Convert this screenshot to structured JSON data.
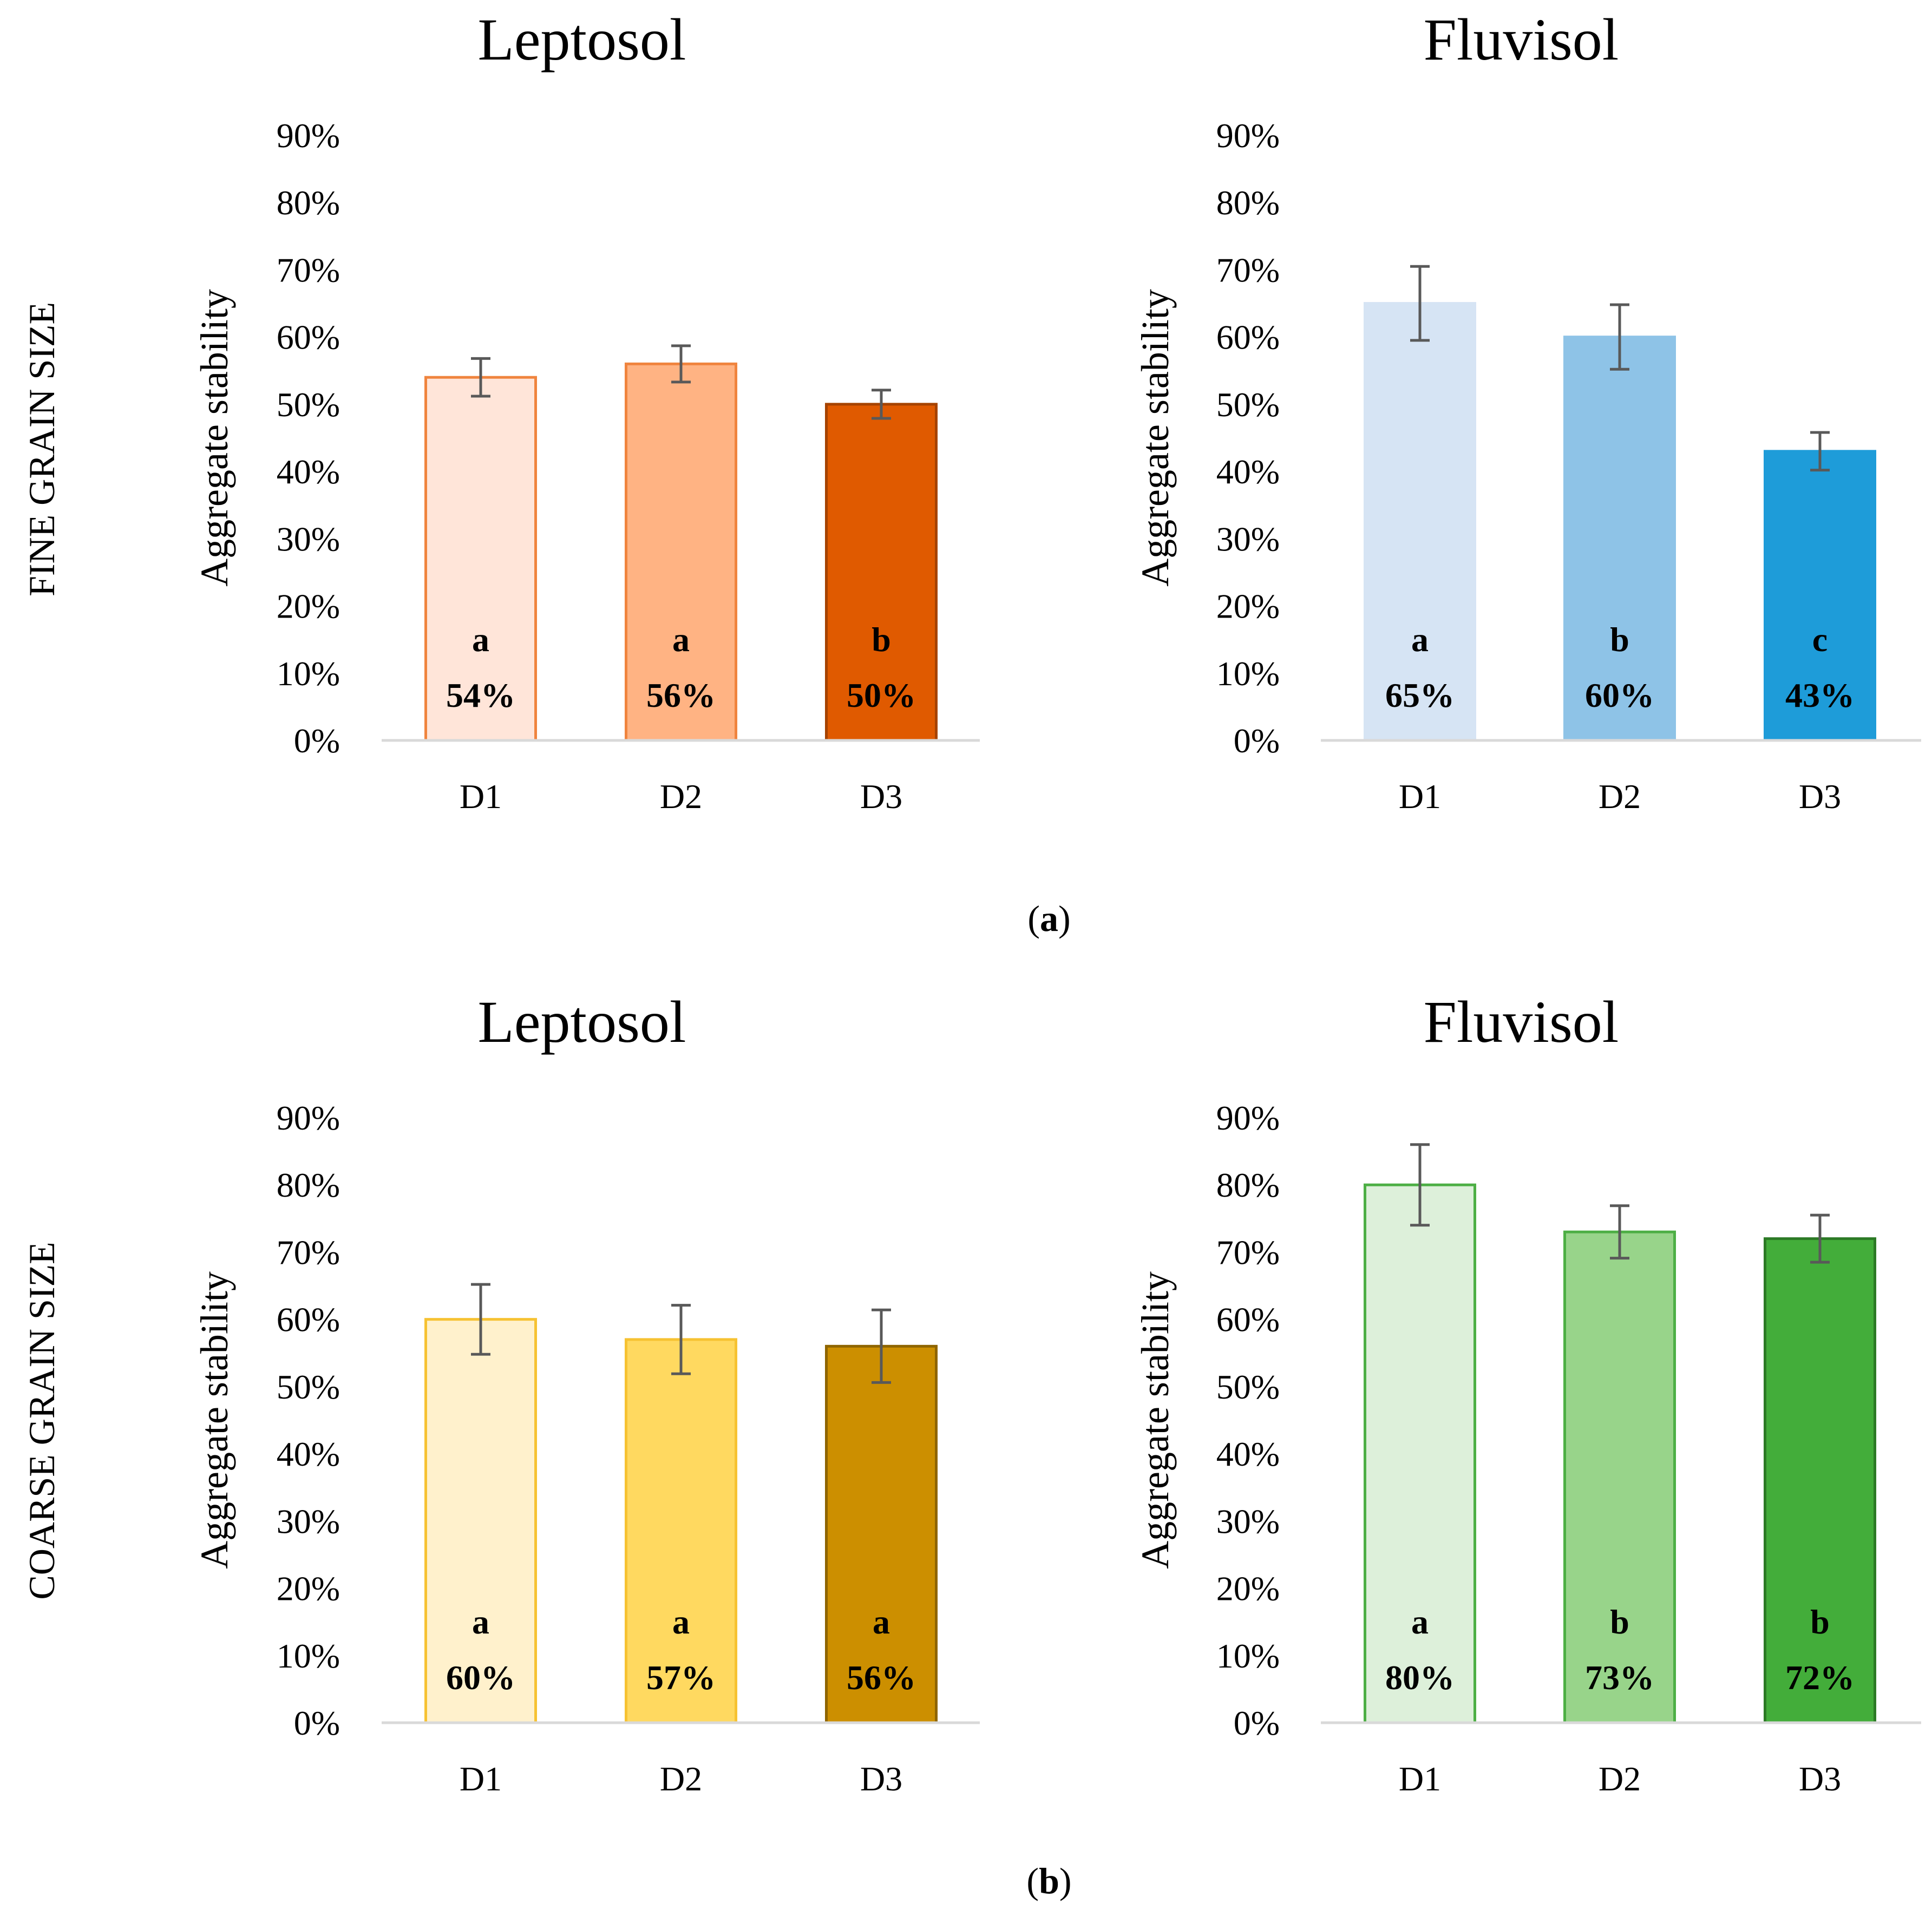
{
  "row_labels": [
    "FINE GRAIN SIZE",
    "COARSE GRAIN SIZE"
  ],
  "captions": [
    {
      "open": "(",
      "letter": "a",
      "close": ")"
    },
    {
      "open": "(",
      "letter": "b",
      "close": ")"
    }
  ],
  "chart_data": [
    {
      "type": "bar",
      "panel": "a",
      "title": "Leptosol",
      "xlabel": "",
      "ylabel": "Aggregate stability",
      "categories": [
        "D1",
        "D2",
        "D3"
      ],
      "values": [
        54,
        56,
        50
      ],
      "errors": [
        2.8,
        2.7,
        2.1
      ],
      "letters": [
        "a",
        "a",
        "b"
      ],
      "data_labels": [
        "54%",
        "56%",
        "50%"
      ],
      "fills": [
        "#FFE5D9",
        "#FFB383",
        "#E05A00"
      ],
      "strokes": [
        "#F0843E",
        "#F0843E",
        "#A64300"
      ],
      "ylim": [
        0,
        90
      ],
      "yticks": [
        "0%",
        "10%",
        "20%",
        "30%",
        "40%",
        "50%",
        "60%",
        "70%",
        "80%",
        "90%"
      ],
      "grid": false
    },
    {
      "type": "bar",
      "panel": "a",
      "title": "Fluvisol",
      "xlabel": "",
      "ylabel": "Aggregate stability",
      "categories": [
        "D1",
        "D2",
        "D3"
      ],
      "values": [
        65,
        60,
        43
      ],
      "errors": [
        5.5,
        4.8,
        2.8
      ],
      "letters": [
        "a",
        "b",
        "c"
      ],
      "data_labels": [
        "65%",
        "60%",
        "43%"
      ],
      "fills": [
        "#D6E4F4",
        "#8EC3E7",
        "#1E9CD9"
      ],
      "strokes": [
        "#D6E4F4",
        "#8EC3E7",
        "#1E9CD9"
      ],
      "ylim": [
        0,
        90
      ],
      "yticks": [
        "0%",
        "10%",
        "20%",
        "30%",
        "40%",
        "50%",
        "60%",
        "70%",
        "80%",
        "90%"
      ],
      "grid": false
    },
    {
      "type": "bar",
      "panel": "b",
      "title": "Leptosol",
      "xlabel": "",
      "ylabel": "Aggregate stability",
      "categories": [
        "D1",
        "D2",
        "D3"
      ],
      "values": [
        60,
        57,
        56
      ],
      "errors": [
        5.2,
        5.1,
        5.4
      ],
      "letters": [
        "a",
        "a",
        "a"
      ],
      "data_labels": [
        "60%",
        "57%",
        "56%"
      ],
      "fills": [
        "#FFF1CC",
        "#FFD960",
        "#CC8F00"
      ],
      "strokes": [
        "#F6C232",
        "#F6C232",
        "#8F6500"
      ],
      "ylim": [
        0,
        90
      ],
      "yticks": [
        "0%",
        "10%",
        "20%",
        "30%",
        "40%",
        "50%",
        "60%",
        "70%",
        "80%",
        "90%"
      ],
      "grid": false
    },
    {
      "type": "bar",
      "panel": "b",
      "title": "Fluvisol",
      "xlabel": "",
      "ylabel": "Aggregate stability",
      "categories": [
        "D1",
        "D2",
        "D3"
      ],
      "values": [
        80,
        73,
        72
      ],
      "errors": [
        6.0,
        3.9,
        3.5
      ],
      "letters": [
        "a",
        "b",
        "b"
      ],
      "data_labels": [
        "80%",
        "73%",
        "72%"
      ],
      "fills": [
        "#DDF0DA",
        "#98D48A",
        "#43AD3A"
      ],
      "strokes": [
        "#4DAF45",
        "#4DAF45",
        "#2C7A25"
      ],
      "ylim": [
        0,
        90
      ],
      "yticks": [
        "0%",
        "10%",
        "20%",
        "30%",
        "40%",
        "50%",
        "60%",
        "70%",
        "80%",
        "90%"
      ],
      "grid": false
    }
  ]
}
